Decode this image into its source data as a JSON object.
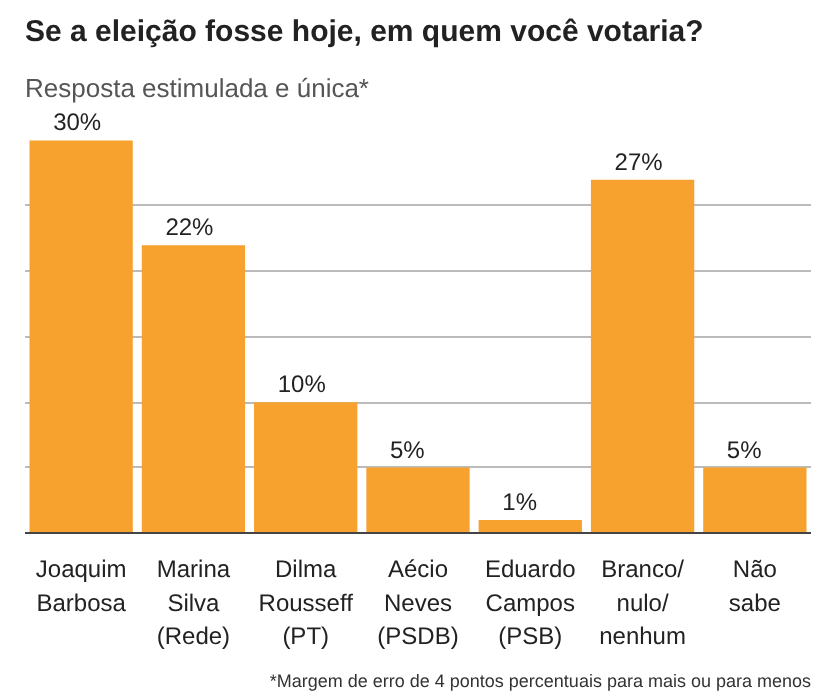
{
  "chart_data": {
    "type": "bar",
    "title": "Se a eleição fosse hoje, em quem você votaria?",
    "subtitle": "Resposta estimulada e única*",
    "categories": [
      "Joaquim\nBarbosa",
      "Marina\nSilva\n(Rede)",
      "Dilma\nRousseff\n(PT)",
      "Aécio\nNeves\n(PSDB)",
      "Eduardo\nCampos\n(PSB)",
      "Branco/\nnulo/\nnenhum",
      "Não\nsabe"
    ],
    "values": [
      30,
      22,
      10,
      5,
      1,
      27,
      5
    ],
    "color": "#f7a12f",
    "value_labels": [
      "30%",
      "22%",
      "10%",
      "5%",
      "1%",
      "27%",
      "5%"
    ],
    "yticks": [
      {
        "value": 0,
        "label": null
      },
      {
        "value": 5,
        "label": null
      },
      {
        "value": 10,
        "label": null
      },
      {
        "value": 15,
        "label": null
      },
      {
        "value": 20,
        "label": null
      },
      {
        "value": 25,
        "label": null
      }
    ],
    "grid": "y",
    "tick_labels": "x",
    "annotations": [
      "*Margem de erro de 4 pontos percentuais para mais ou para menos"
    ]
  }
}
